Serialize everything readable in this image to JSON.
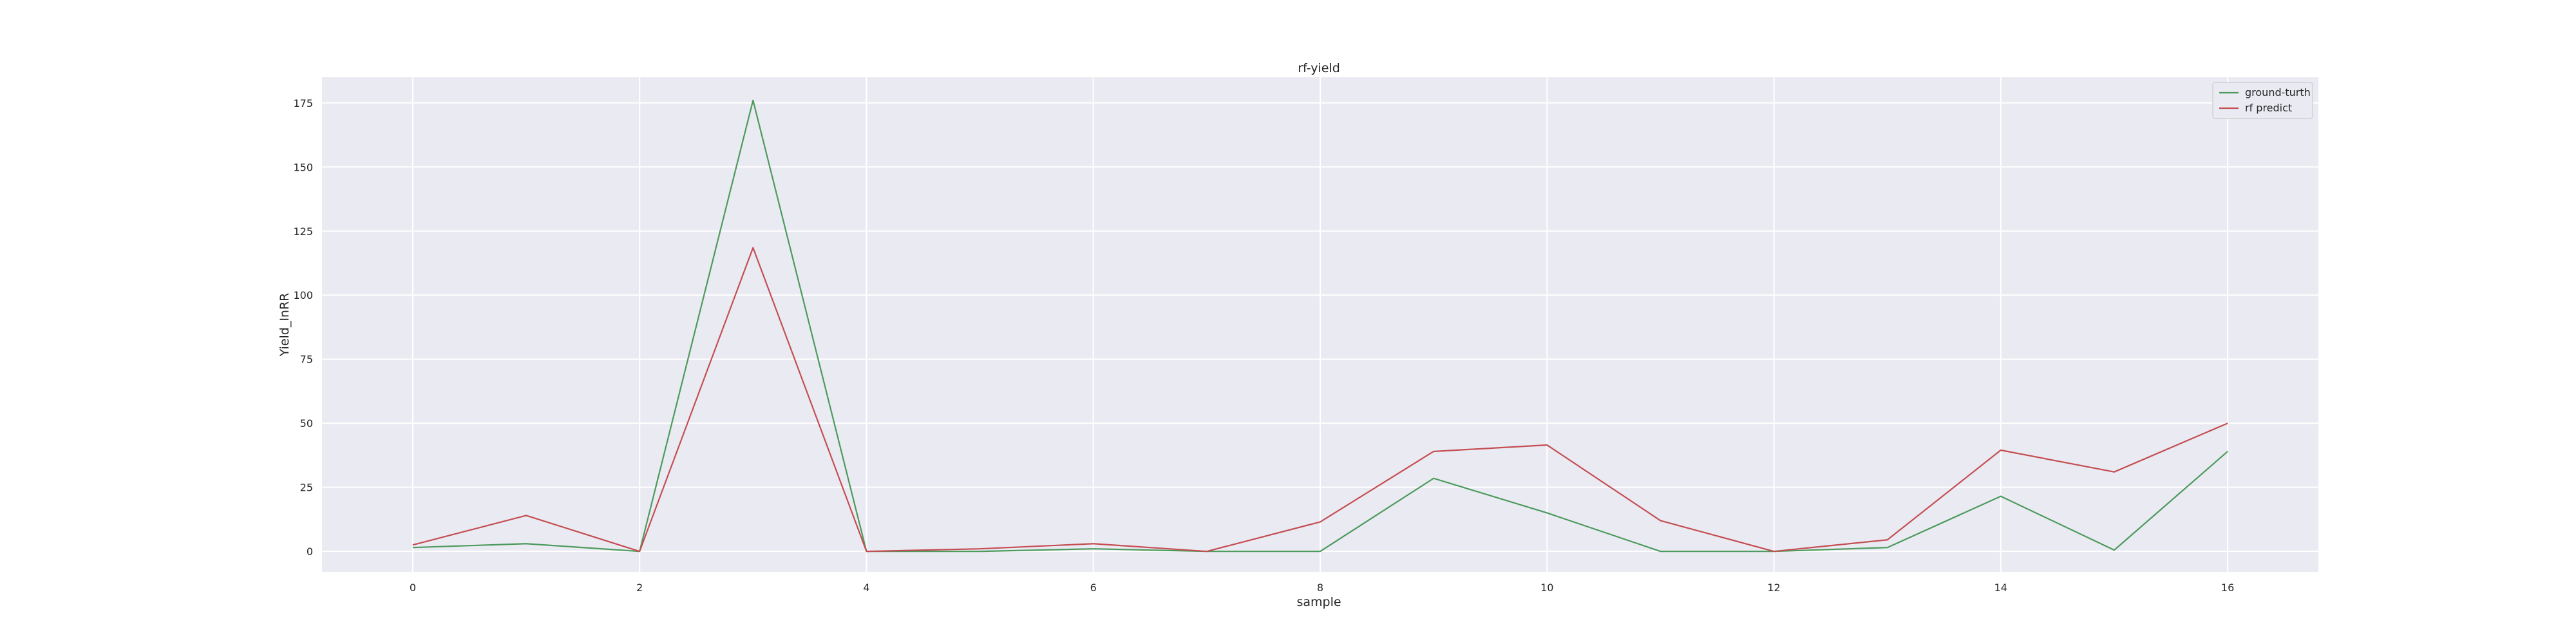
{
  "chart_data": {
    "type": "line",
    "title": "rf-yield",
    "xlabel": "sample",
    "ylabel": "Yield_InRR",
    "xlim": [
      -0.8,
      16.8
    ],
    "ylim": [
      -8,
      185
    ],
    "xticks": [
      0,
      2,
      4,
      6,
      8,
      10,
      12,
      14,
      16
    ],
    "yticks": [
      0,
      25,
      50,
      75,
      100,
      125,
      150,
      175
    ],
    "grid": true,
    "legend_position": "top-right",
    "x": [
      0,
      1,
      2,
      3,
      4,
      5,
      6,
      7,
      8,
      9,
      10,
      11,
      12,
      13,
      14,
      15,
      16
    ],
    "series": [
      {
        "name": "ground-turth",
        "color": "#4c9a5c",
        "values": [
          1.5,
          3,
          0,
          176,
          0,
          0,
          1,
          0,
          0,
          28.5,
          15,
          0,
          0,
          1.5,
          21.5,
          0.5,
          39
        ]
      },
      {
        "name": "rf predict",
        "color": "#c44e52",
        "values": [
          2.5,
          14,
          0,
          118.5,
          0,
          1,
          3,
          0,
          11.5,
          39,
          41.5,
          12,
          0,
          4.5,
          39.5,
          31,
          50
        ]
      }
    ]
  }
}
